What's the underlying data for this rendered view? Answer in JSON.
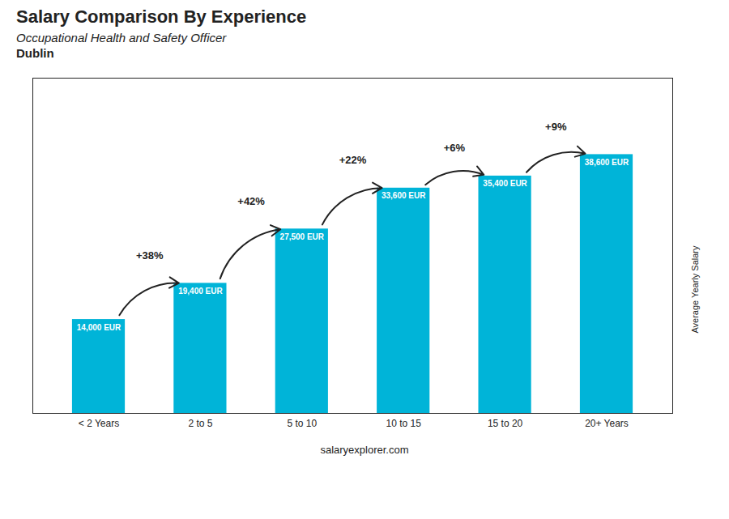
{
  "chart_data": {
    "type": "bar",
    "title": "Salary Comparison By Experience",
    "subtitle": [
      "Occupational Health and Safety Officer",
      "Dublin"
    ],
    "categories": [
      "< 2 Years",
      "2 to 5",
      "5 to 10",
      "10 to 15",
      "15 to 20",
      "20+ Years"
    ],
    "values": [
      14000,
      19400,
      27500,
      33600,
      35400,
      38600
    ],
    "value_labels": [
      "14,000 EUR",
      "19,400 EUR",
      "27,500 EUR",
      "33,600 EUR",
      "35,400 EUR",
      "38,600 EUR"
    ],
    "data_labels": true,
    "color": "#00b4d8",
    "ylabel": "Average Yearly Salary",
    "ylim": [
      0,
      50000
    ],
    "yticks": [],
    "tick_labels": "x",
    "annotations": [
      {
        "text": "+38%",
        "from": "< 2 Years",
        "to": "2 to 5"
      },
      {
        "text": "+42%",
        "from": "2 to 5",
        "to": "5 to 10"
      },
      {
        "text": "+22%",
        "from": "5 to 10",
        "to": "10 to 15"
      },
      {
        "text": "+6%",
        "from": "10 to 15",
        "to": "15 to 20"
      },
      {
        "text": "+9%",
        "from": "15 to 20",
        "to": "20+ Years"
      }
    ],
    "caption": "salaryexplorer.com"
  }
}
